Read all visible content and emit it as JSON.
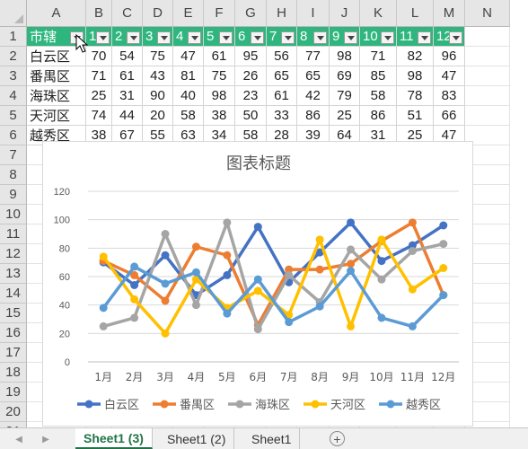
{
  "spreadsheet": {
    "columns": [
      "A",
      "B",
      "C",
      "D",
      "E",
      "F",
      "G",
      "H",
      "I",
      "J",
      "K",
      "L",
      "M",
      "N"
    ],
    "rows": [
      "1",
      "2",
      "3",
      "4",
      "5",
      "6",
      "7",
      "8",
      "9",
      "10",
      "11",
      "12",
      "13",
      "14",
      "15",
      "16",
      "17",
      "18",
      "19",
      "20",
      "21",
      "22"
    ],
    "header_row": [
      "市辖",
      "1",
      "2",
      "3",
      "4",
      "5",
      "6",
      "7",
      "8",
      "9",
      "10",
      "11",
      "12"
    ],
    "data_rows": [
      {
        "label": "白云区",
        "values": [
          "70",
          "54",
          "75",
          "47",
          "61",
          "95",
          "56",
          "77",
          "98",
          "71",
          "82",
          "96"
        ]
      },
      {
        "label": "番禺区",
        "values": [
          "71",
          "61",
          "43",
          "81",
          "75",
          "26",
          "65",
          "65",
          "69",
          "85",
          "98",
          "47"
        ]
      },
      {
        "label": "海珠区",
        "values": [
          "25",
          "31",
          "90",
          "40",
          "98",
          "23",
          "61",
          "42",
          "79",
          "58",
          "78",
          "83"
        ]
      },
      {
        "label": "天河区",
        "values": [
          "74",
          "44",
          "20",
          "58",
          "38",
          "50",
          "33",
          "86",
          "25",
          "86",
          "51",
          "66"
        ]
      },
      {
        "label": "越秀区",
        "values": [
          "38",
          "67",
          "55",
          "63",
          "34",
          "58",
          "28",
          "39",
          "64",
          "31",
          "25",
          "47"
        ]
      }
    ]
  },
  "chart_data": {
    "type": "line",
    "title": "图表标题",
    "categories": [
      "1月",
      "2月",
      "3月",
      "4月",
      "5月",
      "6月",
      "7月",
      "8月",
      "9月",
      "10月",
      "11月",
      "12月"
    ],
    "yticks": [
      "0",
      "20",
      "40",
      "60",
      "80",
      "100",
      "120"
    ],
    "ylim": [
      0,
      120
    ],
    "grid": true,
    "legend_position": "bottom",
    "series": [
      {
        "name": "白云区",
        "color": "#4472c4",
        "values": [
          70,
          54,
          75,
          47,
          61,
          95,
          56,
          77,
          98,
          71,
          82,
          96
        ]
      },
      {
        "name": "番禺区",
        "color": "#ed7d31",
        "values": [
          71,
          61,
          43,
          81,
          75,
          26,
          65,
          65,
          69,
          85,
          98,
          47
        ]
      },
      {
        "name": "海珠区",
        "color": "#a5a5a5",
        "values": [
          25,
          31,
          90,
          40,
          98,
          23,
          61,
          42,
          79,
          58,
          78,
          83
        ]
      },
      {
        "name": "天河区",
        "color": "#ffc000",
        "values": [
          74,
          44,
          20,
          58,
          38,
          50,
          33,
          86,
          25,
          86,
          51,
          66
        ]
      },
      {
        "name": "越秀区",
        "color": "#5b9bd5",
        "values": [
          38,
          67,
          55,
          63,
          34,
          58,
          28,
          39,
          64,
          31,
          25,
          47
        ]
      }
    ]
  },
  "tabs": {
    "items": [
      {
        "label": "Sheet1 (3)",
        "active": true
      },
      {
        "label": "Sheet1 (2)",
        "active": false
      },
      {
        "label": "Sheet1",
        "active": false
      }
    ],
    "add_icon": "+",
    "prev_icon": "◀",
    "next_icon": "▶"
  },
  "colors": {
    "header_fill": "#2fb67f",
    "active_tab": "#217346"
  }
}
